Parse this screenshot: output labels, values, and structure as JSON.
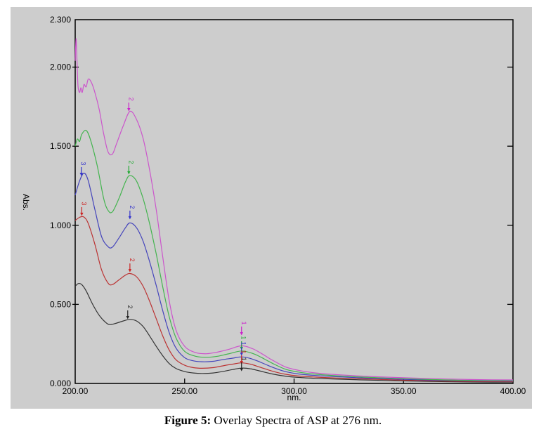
{
  "figure": {
    "caption_prefix": "Figure 5:",
    "caption_text": " Overlay Spectra of ASP at 276 nm."
  },
  "chart_data": {
    "type": "line",
    "title": "Overlay Spectra of ASP at 276 nm",
    "xlabel": "nm.",
    "ylabel": "Abs.",
    "xlim": [
      200,
      400
    ],
    "ylim": [
      0,
      2.3
    ],
    "grid": false,
    "legend": "none",
    "panel_background": "#cdcdcd",
    "axis_color": "#000000",
    "x_ticks": [
      {
        "label": "200.00",
        "value": 200,
        "tick": false
      },
      {
        "label": "250.00",
        "value": 250,
        "tick": true
      },
      {
        "label": "300.00",
        "value": 300,
        "tick": true
      },
      {
        "label": "350.00",
        "value": 350,
        "tick": true
      },
      {
        "label": "400.00",
        "value": 400,
        "tick": false
      }
    ],
    "y_ticks": [
      {
        "label": "2.300",
        "value": 2.3,
        "tick": false
      },
      {
        "label": "2.000",
        "value": 2.0,
        "tick": true
      },
      {
        "label": "1.500",
        "value": 1.5,
        "tick": true
      },
      {
        "label": "1.000",
        "value": 1.0,
        "tick": true
      },
      {
        "label": "0.500",
        "value": 0.5,
        "tick": true
      },
      {
        "label": "0.000",
        "value": 0.0,
        "tick": false
      }
    ],
    "series": [
      {
        "name": "black-spectrum",
        "color": "#333333",
        "points": [
          [
            200,
            0.615
          ],
          [
            201.5,
            0.632
          ],
          [
            203,
            0.625
          ],
          [
            205,
            0.585
          ],
          [
            208,
            0.5
          ],
          [
            211,
            0.43
          ],
          [
            214,
            0.385
          ],
          [
            216,
            0.372
          ],
          [
            219,
            0.382
          ],
          [
            222,
            0.395
          ],
          [
            225,
            0.405
          ],
          [
            228,
            0.395
          ],
          [
            231,
            0.36
          ],
          [
            234,
            0.3
          ],
          [
            237,
            0.235
          ],
          [
            240,
            0.175
          ],
          [
            243,
            0.125
          ],
          [
            246,
            0.095
          ],
          [
            250,
            0.075
          ],
          [
            254,
            0.066
          ],
          [
            258,
            0.063
          ],
          [
            263,
            0.066
          ],
          [
            268,
            0.077
          ],
          [
            272,
            0.088
          ],
          [
            276,
            0.097
          ],
          [
            280,
            0.093
          ],
          [
            284,
            0.08
          ],
          [
            290,
            0.06
          ],
          [
            296,
            0.046
          ],
          [
            302,
            0.038
          ],
          [
            310,
            0.032
          ],
          [
            320,
            0.027
          ],
          [
            335,
            0.021
          ],
          [
            350,
            0.016
          ],
          [
            370,
            0.011
          ],
          [
            385,
            0.009
          ],
          [
            400,
            0.008
          ]
        ]
      },
      {
        "name": "red-spectrum",
        "color": "#bb3333",
        "points": [
          [
            200,
            1.03
          ],
          [
            202,
            1.05
          ],
          [
            204,
            1.052
          ],
          [
            206,
            1.01
          ],
          [
            209,
            0.88
          ],
          [
            212,
            0.72
          ],
          [
            215,
            0.635
          ],
          [
            217,
            0.625
          ],
          [
            220,
            0.655
          ],
          [
            223,
            0.685
          ],
          [
            225,
            0.695
          ],
          [
            228,
            0.675
          ],
          [
            231,
            0.615
          ],
          [
            234,
            0.52
          ],
          [
            237,
            0.41
          ],
          [
            240,
            0.3
          ],
          [
            243,
            0.21
          ],
          [
            246,
            0.15
          ],
          [
            250,
            0.115
          ],
          [
            254,
            0.1
          ],
          [
            258,
            0.096
          ],
          [
            263,
            0.1
          ],
          [
            268,
            0.113
          ],
          [
            272,
            0.122
          ],
          [
            276,
            0.13
          ],
          [
            280,
            0.122
          ],
          [
            284,
            0.105
          ],
          [
            290,
            0.078
          ],
          [
            296,
            0.058
          ],
          [
            302,
            0.047
          ],
          [
            310,
            0.04
          ],
          [
            320,
            0.034
          ],
          [
            335,
            0.027
          ],
          [
            350,
            0.021
          ],
          [
            370,
            0.015
          ],
          [
            385,
            0.012
          ],
          [
            400,
            0.011
          ]
        ]
      },
      {
        "name": "blue-spectrum",
        "color": "#4444bb",
        "points": [
          [
            200,
            1.19
          ],
          [
            202,
            1.28
          ],
          [
            204,
            1.33
          ],
          [
            206,
            1.28
          ],
          [
            209,
            1.1
          ],
          [
            212,
            0.93
          ],
          [
            215,
            0.865
          ],
          [
            217,
            0.862
          ],
          [
            220,
            0.92
          ],
          [
            223,
            0.985
          ],
          [
            225,
            1.015
          ],
          [
            228,
            0.985
          ],
          [
            231,
            0.9
          ],
          [
            234,
            0.77
          ],
          [
            237,
            0.62
          ],
          [
            240,
            0.46
          ],
          [
            243,
            0.32
          ],
          [
            246,
            0.225
          ],
          [
            250,
            0.163
          ],
          [
            254,
            0.143
          ],
          [
            258,
            0.137
          ],
          [
            263,
            0.14
          ],
          [
            268,
            0.152
          ],
          [
            272,
            0.16
          ],
          [
            276,
            0.168
          ],
          [
            280,
            0.158
          ],
          [
            284,
            0.138
          ],
          [
            290,
            0.103
          ],
          [
            296,
            0.075
          ],
          [
            302,
            0.06
          ],
          [
            310,
            0.05
          ],
          [
            320,
            0.042
          ],
          [
            335,
            0.033
          ],
          [
            350,
            0.026
          ],
          [
            370,
            0.019
          ],
          [
            385,
            0.016
          ],
          [
            400,
            0.015
          ]
        ]
      },
      {
        "name": "green-spectrum",
        "color": "#44b44f",
        "points": [
          [
            200,
            1.5
          ],
          [
            201,
            1.545
          ],
          [
            202,
            1.53
          ],
          [
            203,
            1.575
          ],
          [
            205,
            1.6
          ],
          [
            207,
            1.54
          ],
          [
            210,
            1.38
          ],
          [
            213,
            1.17
          ],
          [
            215,
            1.095
          ],
          [
            217,
            1.085
          ],
          [
            220,
            1.17
          ],
          [
            223,
            1.275
          ],
          [
            225,
            1.315
          ],
          [
            228,
            1.28
          ],
          [
            231,
            1.17
          ],
          [
            234,
            1.01
          ],
          [
            237,
            0.82
          ],
          [
            240,
            0.61
          ],
          [
            243,
            0.42
          ],
          [
            246,
            0.29
          ],
          [
            250,
            0.203
          ],
          [
            255,
            0.172
          ],
          [
            260,
            0.165
          ],
          [
            265,
            0.172
          ],
          [
            270,
            0.187
          ],
          [
            276,
            0.205
          ],
          [
            281,
            0.19
          ],
          [
            285,
            0.165
          ],
          [
            290,
            0.128
          ],
          [
            296,
            0.09
          ],
          [
            302,
            0.072
          ],
          [
            310,
            0.058
          ],
          [
            320,
            0.048
          ],
          [
            335,
            0.038
          ],
          [
            350,
            0.03
          ],
          [
            370,
            0.022
          ],
          [
            385,
            0.019
          ],
          [
            400,
            0.018
          ]
        ]
      },
      {
        "name": "magenta-spectrum",
        "color": "#cc55cc",
        "points": [
          [
            200,
            2.04
          ],
          [
            200.4,
            2.18
          ],
          [
            200.8,
            2.05
          ],
          [
            201.3,
            1.88
          ],
          [
            202,
            1.84
          ],
          [
            202.6,
            1.87
          ],
          [
            203.2,
            1.84
          ],
          [
            204,
            1.89
          ],
          [
            205,
            1.875
          ],
          [
            206,
            1.925
          ],
          [
            207.5,
            1.9
          ],
          [
            209,
            1.84
          ],
          [
            211,
            1.73
          ],
          [
            213,
            1.58
          ],
          [
            215,
            1.465
          ],
          [
            217,
            1.45
          ],
          [
            219,
            1.52
          ],
          [
            222,
            1.63
          ],
          [
            225,
            1.72
          ],
          [
            228,
            1.67
          ],
          [
            231,
            1.55
          ],
          [
            234,
            1.35
          ],
          [
            237,
            1.1
          ],
          [
            240,
            0.8
          ],
          [
            243,
            0.52
          ],
          [
            246,
            0.34
          ],
          [
            250,
            0.235
          ],
          [
            255,
            0.195
          ],
          [
            260,
            0.188
          ],
          [
            265,
            0.198
          ],
          [
            270,
            0.215
          ],
          [
            276,
            0.238
          ],
          [
            281,
            0.22
          ],
          [
            285,
            0.19
          ],
          [
            290,
            0.148
          ],
          [
            296,
            0.105
          ],
          [
            302,
            0.083
          ],
          [
            310,
            0.066
          ],
          [
            320,
            0.055
          ],
          [
            335,
            0.044
          ],
          [
            350,
            0.036
          ],
          [
            370,
            0.028
          ],
          [
            385,
            0.024
          ],
          [
            400,
            0.022
          ]
        ]
      }
    ],
    "annotations": [
      {
        "series": "magenta",
        "text": "2",
        "nm": 224.5,
        "label_abs": 1.798,
        "color": "#cc22cc"
      },
      {
        "series": "green",
        "text": "2",
        "nm": 224.5,
        "label_abs": 1.399,
        "color": "#22aa33"
      },
      {
        "series": "blue",
        "text": "3",
        "nm": 202.8,
        "label_abs": 1.39,
        "color": "#3333cc"
      },
      {
        "series": "blue",
        "text": "2",
        "nm": 225.0,
        "label_abs": 1.115,
        "color": "#3333cc"
      },
      {
        "series": "red",
        "text": "3",
        "nm": 203.0,
        "label_abs": 1.137,
        "color": "#cc2222"
      },
      {
        "series": "red",
        "text": "2",
        "nm": 225.0,
        "label_abs": 0.781,
        "color": "#cc2222"
      },
      {
        "series": "black",
        "text": "2",
        "nm": 224.0,
        "label_abs": 0.484,
        "color": "#222222"
      },
      {
        "series": "magenta",
        "text": "1",
        "nm": 276.0,
        "label_abs": 0.382,
        "color": "#cc22cc"
      },
      {
        "series": "green",
        "text": "1",
        "nm": 276.0,
        "label_abs": 0.289,
        "color": "#22aa33"
      },
      {
        "series": "blue",
        "text": "1",
        "nm": 276.0,
        "label_abs": 0.253,
        "color": "#3333cc"
      },
      {
        "series": "red",
        "text": "1",
        "nm": 276.0,
        "label_abs": 0.2,
        "color": "#cc2222"
      },
      {
        "series": "black",
        "text": "1",
        "nm": 276.0,
        "label_abs": 0.155,
        "color": "#222222"
      }
    ]
  }
}
